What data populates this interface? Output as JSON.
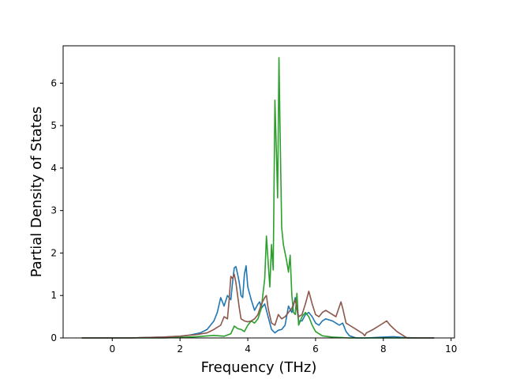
{
  "chart_data": {
    "type": "line",
    "title": "",
    "xlabel": "Frequency (THz)",
    "ylabel": "Partial Density of States",
    "xlim": [
      -1.45,
      10.1
    ],
    "ylim": [
      0,
      6.88
    ],
    "xticks": [
      0,
      2,
      4,
      6,
      8,
      10
    ],
    "yticks": [
      0,
      1,
      2,
      3,
      4,
      5,
      6
    ],
    "grid": false,
    "legend": "none",
    "series": [
      {
        "color": "#1f77b4",
        "points": [
          [
            -0.9,
            0
          ],
          [
            0.5,
            0
          ],
          [
            1.0,
            0.01
          ],
          [
            1.5,
            0.02
          ],
          [
            2.0,
            0.04
          ],
          [
            2.3,
            0.07
          ],
          [
            2.6,
            0.12
          ],
          [
            2.8,
            0.2
          ],
          [
            3.0,
            0.4
          ],
          [
            3.1,
            0.6
          ],
          [
            3.2,
            0.95
          ],
          [
            3.3,
            0.75
          ],
          [
            3.4,
            1.0
          ],
          [
            3.5,
            0.9
          ],
          [
            3.55,
            1.3
          ],
          [
            3.6,
            1.65
          ],
          [
            3.65,
            1.68
          ],
          [
            3.7,
            1.5
          ],
          [
            3.75,
            1.3
          ],
          [
            3.8,
            1.0
          ],
          [
            3.85,
            0.95
          ],
          [
            3.9,
            1.5
          ],
          [
            3.95,
            1.7
          ],
          [
            4.0,
            1.2
          ],
          [
            4.1,
            0.9
          ],
          [
            4.2,
            0.65
          ],
          [
            4.3,
            0.8
          ],
          [
            4.35,
            0.85
          ],
          [
            4.4,
            0.7
          ],
          [
            4.5,
            0.8
          ],
          [
            4.6,
            0.5
          ],
          [
            4.7,
            0.2
          ],
          [
            4.8,
            0.12
          ],
          [
            4.9,
            0.18
          ],
          [
            5.0,
            0.2
          ],
          [
            5.1,
            0.3
          ],
          [
            5.2,
            0.75
          ],
          [
            5.3,
            0.6
          ],
          [
            5.4,
            0.95
          ],
          [
            5.5,
            0.4
          ],
          [
            5.6,
            0.4
          ],
          [
            5.7,
            0.55
          ],
          [
            5.8,
            0.6
          ],
          [
            5.9,
            0.5
          ],
          [
            6.0,
            0.35
          ],
          [
            6.1,
            0.3
          ],
          [
            6.2,
            0.4
          ],
          [
            6.3,
            0.45
          ],
          [
            6.5,
            0.4
          ],
          [
            6.7,
            0.3
          ],
          [
            6.8,
            0.35
          ],
          [
            6.9,
            0.15
          ],
          [
            7.0,
            0.05
          ],
          [
            7.2,
            0
          ],
          [
            7.5,
            0
          ],
          [
            8.0,
            0.02
          ],
          [
            8.3,
            0.03
          ],
          [
            8.6,
            0.01
          ],
          [
            9.0,
            0
          ],
          [
            9.5,
            0
          ]
        ]
      },
      {
        "color": "#2ca02c",
        "points": [
          [
            -0.9,
            0
          ],
          [
            1.5,
            0
          ],
          [
            2.0,
            0.01
          ],
          [
            2.5,
            0.03
          ],
          [
            3.0,
            0.06
          ],
          [
            3.3,
            0.04
          ],
          [
            3.5,
            0.1
          ],
          [
            3.6,
            0.28
          ],
          [
            3.7,
            0.22
          ],
          [
            3.8,
            0.2
          ],
          [
            3.9,
            0.15
          ],
          [
            4.0,
            0.3
          ],
          [
            4.1,
            0.4
          ],
          [
            4.2,
            0.35
          ],
          [
            4.3,
            0.45
          ],
          [
            4.4,
            0.7
          ],
          [
            4.5,
            1.4
          ],
          [
            4.55,
            2.4
          ],
          [
            4.6,
            1.8
          ],
          [
            4.65,
            1.2
          ],
          [
            4.7,
            2.2
          ],
          [
            4.75,
            1.6
          ],
          [
            4.8,
            5.6
          ],
          [
            4.85,
            4.2
          ],
          [
            4.88,
            3.3
          ],
          [
            4.92,
            6.6
          ],
          [
            4.95,
            5.0
          ],
          [
            5.0,
            2.6
          ],
          [
            5.05,
            2.2
          ],
          [
            5.1,
            2.0
          ],
          [
            5.15,
            1.8
          ],
          [
            5.2,
            1.55
          ],
          [
            5.25,
            1.95
          ],
          [
            5.3,
            1.0
          ],
          [
            5.35,
            0.6
          ],
          [
            5.4,
            0.55
          ],
          [
            5.45,
            1.05
          ],
          [
            5.5,
            0.3
          ],
          [
            5.6,
            0.5
          ],
          [
            5.7,
            0.6
          ],
          [
            5.8,
            0.5
          ],
          [
            5.9,
            0.3
          ],
          [
            6.0,
            0.15
          ],
          [
            6.2,
            0.05
          ],
          [
            6.5,
            0.02
          ],
          [
            7.0,
            0
          ],
          [
            9.5,
            0
          ]
        ]
      },
      {
        "color": "#8c564b",
        "points": [
          [
            -0.9,
            0
          ],
          [
            0.5,
            0
          ],
          [
            1.0,
            0.01
          ],
          [
            1.5,
            0.02
          ],
          [
            2.0,
            0.04
          ],
          [
            2.5,
            0.08
          ],
          [
            2.8,
            0.12
          ],
          [
            3.0,
            0.2
          ],
          [
            3.2,
            0.3
          ],
          [
            3.3,
            0.5
          ],
          [
            3.4,
            0.45
          ],
          [
            3.45,
            0.9
          ],
          [
            3.5,
            1.45
          ],
          [
            3.55,
            1.4
          ],
          [
            3.6,
            1.5
          ],
          [
            3.65,
            1.3
          ],
          [
            3.7,
            1.0
          ],
          [
            3.75,
            0.7
          ],
          [
            3.8,
            0.45
          ],
          [
            3.9,
            0.4
          ],
          [
            4.0,
            0.38
          ],
          [
            4.1,
            0.4
          ],
          [
            4.2,
            0.45
          ],
          [
            4.3,
            0.55
          ],
          [
            4.4,
            0.8
          ],
          [
            4.5,
            0.95
          ],
          [
            4.55,
            1.0
          ],
          [
            4.6,
            0.7
          ],
          [
            4.7,
            0.35
          ],
          [
            4.8,
            0.3
          ],
          [
            4.9,
            0.55
          ],
          [
            5.0,
            0.45
          ],
          [
            5.1,
            0.5
          ],
          [
            5.2,
            0.6
          ],
          [
            5.3,
            0.7
          ],
          [
            5.4,
            0.9
          ],
          [
            5.5,
            0.5
          ],
          [
            5.6,
            0.55
          ],
          [
            5.7,
            0.8
          ],
          [
            5.8,
            1.1
          ],
          [
            5.9,
            0.8
          ],
          [
            6.0,
            0.55
          ],
          [
            6.1,
            0.5
          ],
          [
            6.2,
            0.6
          ],
          [
            6.3,
            0.65
          ],
          [
            6.4,
            0.6
          ],
          [
            6.5,
            0.55
          ],
          [
            6.6,
            0.5
          ],
          [
            6.75,
            0.85
          ],
          [
            6.8,
            0.7
          ],
          [
            6.9,
            0.35
          ],
          [
            7.0,
            0.3
          ],
          [
            7.2,
            0.2
          ],
          [
            7.4,
            0.1
          ],
          [
            7.45,
            0.05
          ],
          [
            7.5,
            0.12
          ],
          [
            7.7,
            0.2
          ],
          [
            7.9,
            0.3
          ],
          [
            8.1,
            0.4
          ],
          [
            8.2,
            0.3
          ],
          [
            8.4,
            0.15
          ],
          [
            8.6,
            0.05
          ],
          [
            8.7,
            0
          ],
          [
            9.5,
            0
          ]
        ]
      }
    ]
  }
}
